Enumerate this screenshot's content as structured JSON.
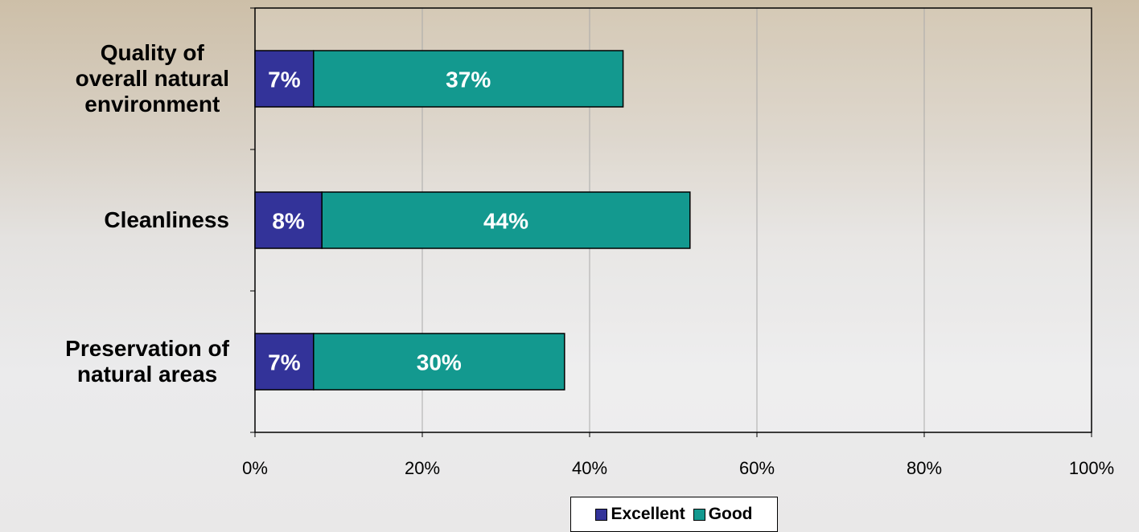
{
  "chart_data": {
    "type": "stacked-bar-horizontal",
    "categories": [
      "Quality of\noverall natural\nenvironment",
      "Cleanliness",
      "Preservation of\nnatural areas"
    ],
    "series": [
      {
        "name": "Excellent",
        "color": "#333399",
        "values": [
          7,
          8,
          7
        ],
        "value_labels": [
          "7%",
          "8%",
          "7%"
        ]
      },
      {
        "name": "Good",
        "color": "#13998f",
        "values": [
          37,
          44,
          30
        ],
        "value_labels": [
          "37%",
          "44%",
          "30%"
        ]
      }
    ],
    "xlim": [
      0,
      100
    ],
    "xticks": [
      {
        "value": 0,
        "label": "0%"
      },
      {
        "value": 20,
        "label": "20%"
      },
      {
        "value": 40,
        "label": "40%"
      },
      {
        "value": 60,
        "label": "60%"
      },
      {
        "value": 80,
        "label": "80%"
      },
      {
        "value": 100,
        "label": "100%"
      }
    ],
    "grid": true,
    "legend": "bottom"
  }
}
